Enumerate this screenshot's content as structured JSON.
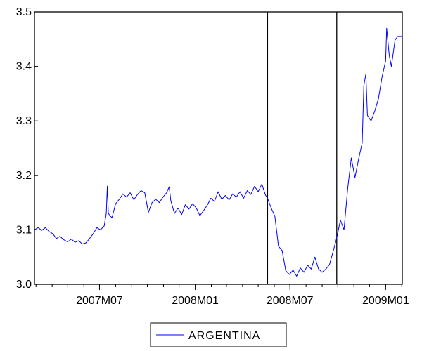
{
  "chart_data": {
    "type": "line",
    "title": "",
    "xlabel": "",
    "ylabel": "",
    "ylim": [
      3.0,
      3.5
    ],
    "xlim": [
      "2007-02-26",
      "2009-02-02"
    ],
    "grid": false,
    "legend_position": "bottom-center",
    "y_ticks": [
      "3.0",
      "3.1",
      "3.2",
      "3.3",
      "3.4",
      "3.5"
    ],
    "y_tick_values": [
      3.0,
      3.1,
      3.2,
      3.3,
      3.4,
      3.5
    ],
    "x_ticks": [
      {
        "label": "2007M07",
        "date": "2007-07-01"
      },
      {
        "label": "2008M01",
        "date": "2008-01-01"
      },
      {
        "label": "2008M07",
        "date": "2008-07-01"
      },
      {
        "label": "2009M01",
        "date": "2009-01-01"
      }
    ],
    "vertical_markers": [
      "2008-05-19",
      "2008-09-29"
    ],
    "series": [
      {
        "name": "ARGENTINA",
        "color": "#0000ff",
        "points": [
          [
            "2007-02-26",
            3.1
          ],
          [
            "2007-03-05",
            3.104
          ],
          [
            "2007-03-12",
            3.099
          ],
          [
            "2007-03-19",
            3.104
          ],
          [
            "2007-03-26",
            3.097
          ],
          [
            "2007-04-02",
            3.093
          ],
          [
            "2007-04-09",
            3.084
          ],
          [
            "2007-04-16",
            3.088
          ],
          [
            "2007-04-23",
            3.082
          ],
          [
            "2007-05-01",
            3.078
          ],
          [
            "2007-05-08",
            3.083
          ],
          [
            "2007-05-15",
            3.077
          ],
          [
            "2007-05-22",
            3.08
          ],
          [
            "2007-05-29",
            3.074
          ],
          [
            "2007-06-05",
            3.076
          ],
          [
            "2007-06-12",
            3.084
          ],
          [
            "2007-06-19",
            3.093
          ],
          [
            "2007-06-26",
            3.104
          ],
          [
            "2007-07-03",
            3.1
          ],
          [
            "2007-07-10",
            3.107
          ],
          [
            "2007-07-14",
            3.13
          ],
          [
            "2007-07-16",
            3.18
          ],
          [
            "2007-07-18",
            3.13
          ],
          [
            "2007-07-25",
            3.122
          ],
          [
            "2007-08-01",
            3.148
          ],
          [
            "2007-08-08",
            3.156
          ],
          [
            "2007-08-15",
            3.166
          ],
          [
            "2007-08-22",
            3.16
          ],
          [
            "2007-08-29",
            3.168
          ],
          [
            "2007-09-05",
            3.155
          ],
          [
            "2007-09-12",
            3.165
          ],
          [
            "2007-09-19",
            3.172
          ],
          [
            "2007-09-26",
            3.168
          ],
          [
            "2007-10-03",
            3.132
          ],
          [
            "2007-10-10",
            3.15
          ],
          [
            "2007-10-17",
            3.156
          ],
          [
            "2007-10-24",
            3.15
          ],
          [
            "2007-10-31",
            3.16
          ],
          [
            "2007-11-07",
            3.168
          ],
          [
            "2007-11-12",
            3.179
          ],
          [
            "2007-11-15",
            3.154
          ],
          [
            "2007-11-22",
            3.13
          ],
          [
            "2007-11-29",
            3.14
          ],
          [
            "2007-12-06",
            3.128
          ],
          [
            "2007-12-13",
            3.146
          ],
          [
            "2007-12-20",
            3.138
          ],
          [
            "2007-12-27",
            3.148
          ],
          [
            "2008-01-03",
            3.14
          ],
          [
            "2008-01-10",
            3.126
          ],
          [
            "2008-01-17",
            3.135
          ],
          [
            "2008-01-24",
            3.145
          ],
          [
            "2008-01-31",
            3.158
          ],
          [
            "2008-02-07",
            3.152
          ],
          [
            "2008-02-14",
            3.17
          ],
          [
            "2008-02-21",
            3.156
          ],
          [
            "2008-02-28",
            3.163
          ],
          [
            "2008-03-06",
            3.155
          ],
          [
            "2008-03-13",
            3.166
          ],
          [
            "2008-03-20",
            3.16
          ],
          [
            "2008-03-27",
            3.17
          ],
          [
            "2008-04-03",
            3.158
          ],
          [
            "2008-04-10",
            3.172
          ],
          [
            "2008-04-17",
            3.165
          ],
          [
            "2008-04-24",
            3.18
          ],
          [
            "2008-05-01",
            3.17
          ],
          [
            "2008-05-08",
            3.184
          ],
          [
            "2008-05-15",
            3.164
          ],
          [
            "2008-05-19",
            3.158
          ],
          [
            "2008-05-26",
            3.14
          ],
          [
            "2008-06-02",
            3.125
          ],
          [
            "2008-06-09",
            3.07
          ],
          [
            "2008-06-16",
            3.062
          ],
          [
            "2008-06-23",
            3.025
          ],
          [
            "2008-06-30",
            3.018
          ],
          [
            "2008-07-07",
            3.026
          ],
          [
            "2008-07-14",
            3.015
          ],
          [
            "2008-07-21",
            3.03
          ],
          [
            "2008-07-28",
            3.022
          ],
          [
            "2008-08-04",
            3.035
          ],
          [
            "2008-08-11",
            3.028
          ],
          [
            "2008-08-18",
            3.05
          ],
          [
            "2008-08-25",
            3.028
          ],
          [
            "2008-09-01",
            3.022
          ],
          [
            "2008-09-08",
            3.028
          ],
          [
            "2008-09-15",
            3.036
          ],
          [
            "2008-09-22",
            3.06
          ],
          [
            "2008-09-29",
            3.085
          ],
          [
            "2008-10-06",
            3.118
          ],
          [
            "2008-10-13",
            3.1
          ],
          [
            "2008-10-20",
            3.175
          ],
          [
            "2008-10-27",
            3.232
          ],
          [
            "2008-11-03",
            3.196
          ],
          [
            "2008-11-10",
            3.23
          ],
          [
            "2008-11-17",
            3.26
          ],
          [
            "2008-11-20",
            3.365
          ],
          [
            "2008-11-24",
            3.386
          ],
          [
            "2008-11-27",
            3.31
          ],
          [
            "2008-12-04",
            3.3
          ],
          [
            "2008-12-11",
            3.318
          ],
          [
            "2008-12-18",
            3.34
          ],
          [
            "2008-12-25",
            3.38
          ],
          [
            "2009-01-01",
            3.41
          ],
          [
            "2009-01-03",
            3.47
          ],
          [
            "2009-01-08",
            3.42
          ],
          [
            "2009-01-12",
            3.4
          ],
          [
            "2009-01-19",
            3.448
          ],
          [
            "2009-01-24",
            3.455
          ],
          [
            "2009-02-02",
            3.455
          ]
        ]
      }
    ]
  }
}
